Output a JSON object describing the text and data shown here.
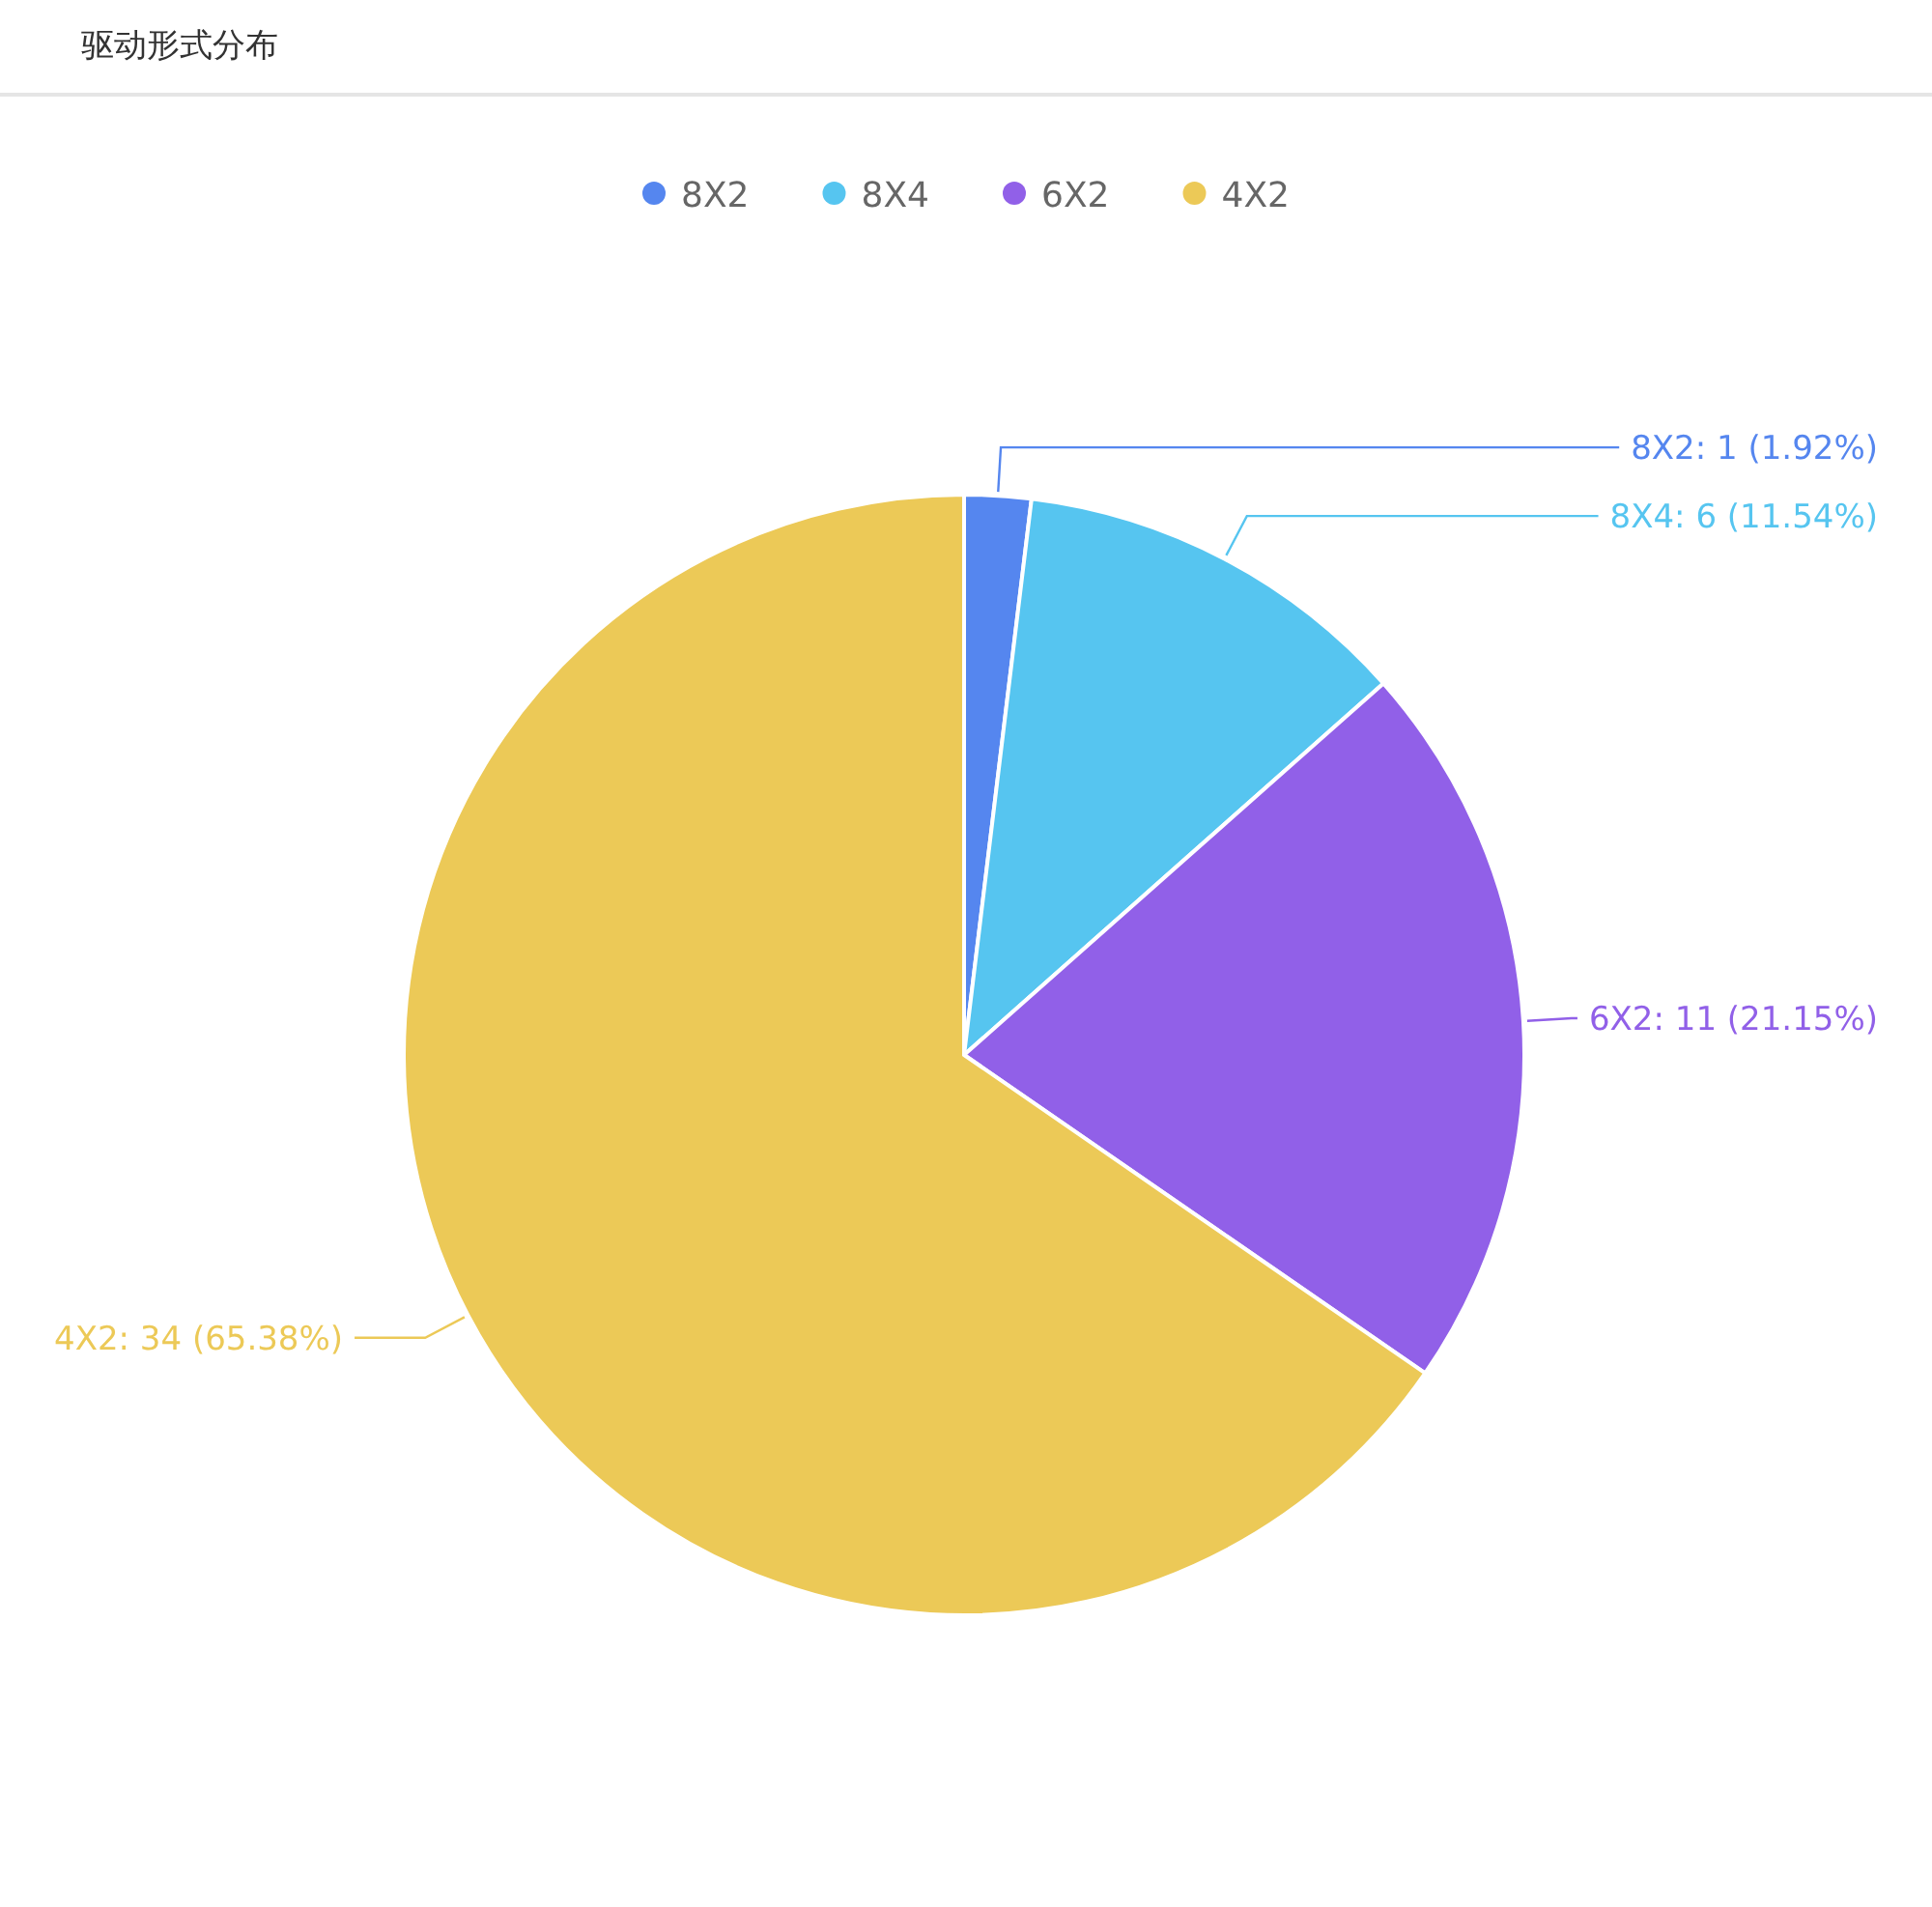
{
  "chart_data": {
    "type": "pie",
    "title": "驱动形式分布",
    "categories": [
      "8X2",
      "8X4",
      "6X2",
      "4X2"
    ],
    "values": [
      1,
      6,
      11,
      34
    ],
    "colors": [
      "#5586ef",
      "#56c5f0",
      "#9160e8",
      "#ecc957"
    ],
    "value_labels": [
      "8X2: 1 (1.92%)",
      "8X4: 6 (11.54%)",
      "6X2: 11 (21.15%)",
      "4X2: 34 (65.38%)"
    ],
    "legend": "top"
  }
}
